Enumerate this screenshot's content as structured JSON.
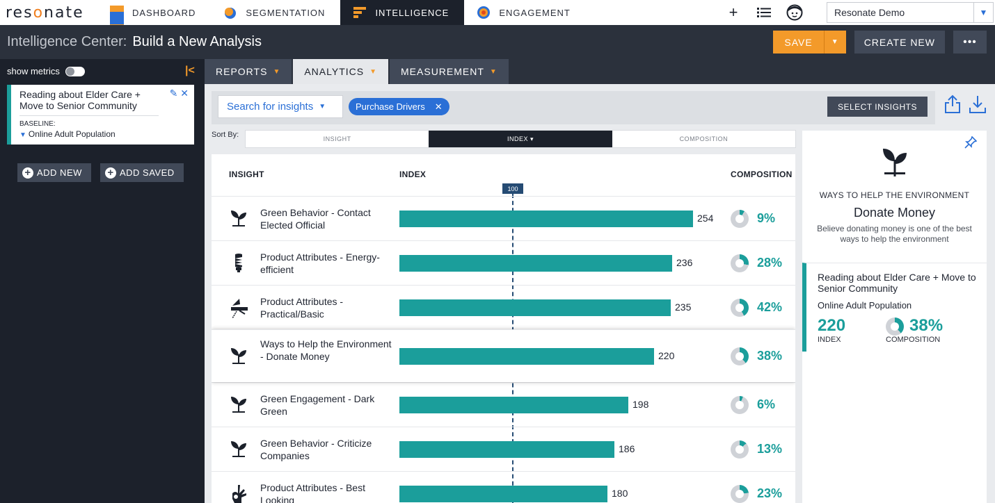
{
  "app": {
    "logo": "resonate",
    "nav": [
      {
        "label": "DASHBOARD"
      },
      {
        "label": "SEGMENTATION"
      },
      {
        "label": "INTELLIGENCE"
      },
      {
        "label": "ENGAGEMENT"
      }
    ],
    "account": "Resonate Demo"
  },
  "header": {
    "prefix": "Intelligence Center:",
    "title": "Build a New Analysis",
    "save": "SAVE",
    "create_new": "CREATE NEW",
    "more": "•••"
  },
  "sidebar": {
    "show_metrics": "show metrics",
    "card": {
      "title": "Reading about Elder Care + Move to Senior Community",
      "baseline_label": "BASELINE:",
      "baseline_value": "Online Adult Population"
    },
    "add_new": "ADD NEW",
    "add_saved": "ADD SAVED"
  },
  "subtabs": [
    {
      "label": "REPORTS"
    },
    {
      "label": "ANALYTICS"
    },
    {
      "label": "MEASUREMENT"
    }
  ],
  "filter": {
    "search_placeholder": "Search for insights",
    "chip": "Purchase Drivers",
    "select_insights": "SELECT INSIGHTS"
  },
  "sort": {
    "label": "Sort By:",
    "options": [
      "INSIGHT",
      "INDEX ▾",
      "COMPOSITION"
    ],
    "selected": 1
  },
  "table": {
    "headers": {
      "insight": "INSIGHT",
      "index": "INDEX",
      "composition": "COMPOSITION"
    },
    "marker": "100",
    "index_max": 254,
    "rows": [
      {
        "icon": "plant-icon",
        "name": "Green Behavior - Contact Elected Official",
        "index": 254,
        "composition": "9%",
        "comp_value": 9
      },
      {
        "icon": "lightbulb-icon",
        "name": "Product Attributes - Energy-efficient",
        "index": 236,
        "composition": "28%",
        "comp_value": 28
      },
      {
        "icon": "multitool-icon",
        "name": "Product Attributes - Practical/Basic",
        "index": 235,
        "composition": "42%",
        "comp_value": 42
      },
      {
        "icon": "plant-icon",
        "name": "Ways to Help the Environment - Donate Money",
        "index": 220,
        "composition": "38%",
        "comp_value": 38,
        "highlight": true
      },
      {
        "icon": "plant-icon",
        "name": "Green Engagement - Dark Green",
        "index": 198,
        "composition": "6%",
        "comp_value": 6
      },
      {
        "icon": "plant-icon",
        "name": "Green Behavior - Criticize Companies",
        "index": 186,
        "composition": "13%",
        "comp_value": 13
      },
      {
        "icon": "ok-hand-icon",
        "name": "Product Attributes - Best Looking",
        "index": 180,
        "composition": "23%",
        "comp_value": 23
      }
    ]
  },
  "detail": {
    "category": "WAYS TO HELP THE ENVIRONMENT",
    "title": "Donate Money",
    "description": "Believe donating money is one of the best ways to help the environment",
    "audience": "Reading about Elder Care + Move to Senior Community",
    "baseline": "Online Adult Population",
    "index": "220",
    "index_label": "INDEX",
    "composition": "38%",
    "comp_value": 38,
    "composition_label": "COMPOSITION"
  },
  "colors": {
    "teal": "#1b9e9b",
    "orange": "#f39a2a",
    "dark": "#1c212b",
    "blue": "#2a6fd6"
  }
}
